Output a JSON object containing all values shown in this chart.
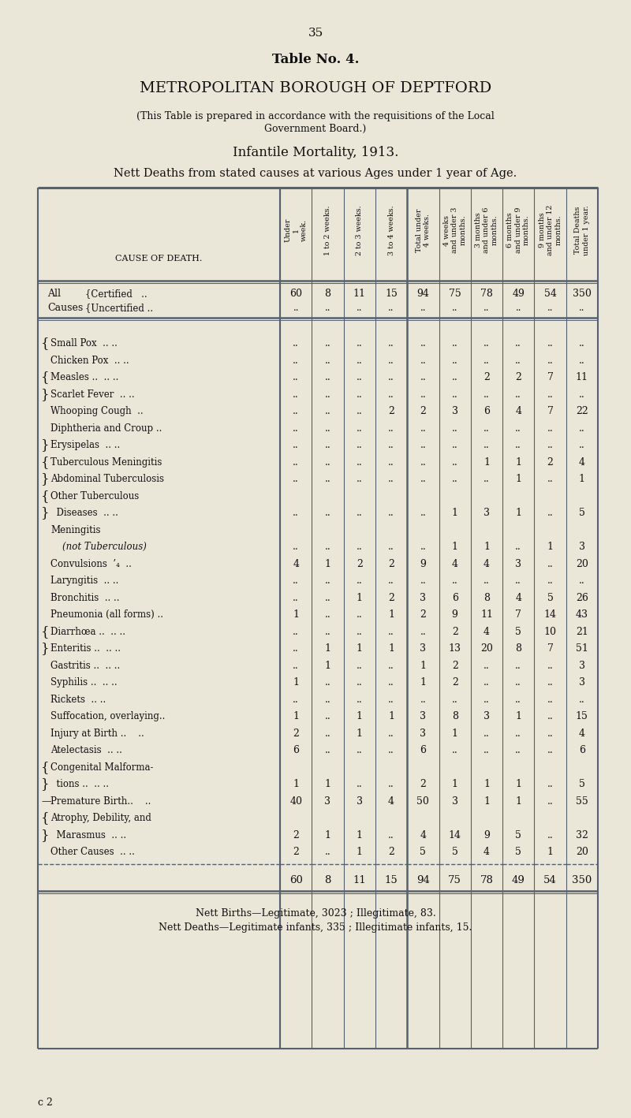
{
  "page_number": "35",
  "table_title": "Table No. 4.",
  "borough_title": "METROPOLITAN BOROUGH OF DEPTFORD",
  "subtitle1": "(This Table is prepared in accordance with the requisitions of the Local",
  "subtitle2": "Government Board.)",
  "mortality_title": "Infantile Mortality, 1913.",
  "nett_deaths_title": "Nett Deaths from stated causes at various Ages under 1 year of Age.",
  "col_headers": [
    "Under\n1\nweek.",
    "1 to 2 weeks.",
    "2 to 3 weeks.",
    "3 to 4 weeks.",
    "Total under\n4 weeks.",
    "4 weeks\nand under 3\nmonths.",
    "3 months\nand under 6\nmonths.",
    "6 months\nand under 9\nmonths.",
    "9 months\nand under 12\nmonths.",
    "Total Deaths\nunder 1 year."
  ],
  "footer1": "Nett Births—Legitimate, 3023 ; Illegitimate, 83.",
  "footer2": "Nett Deaths—Legitimate infants, 335 ; Illegitimate infants, 15.",
  "page_ref": "c 2",
  "bg_color": "#eae6d8",
  "line_color": "#556070",
  "text_color": "#111111",
  "table_rows": [
    {
      "label1": "All",
      "label2": "Certified   ..",
      "bracket": "brace_open",
      "vals": [
        "60",
        "8",
        "11",
        "15",
        "94",
        "75",
        "78",
        "49",
        "54",
        "350"
      ]
    },
    {
      "label1": "Causes",
      "label2": "Uncertified ..",
      "bracket": "brace_close",
      "vals": [
        "..",
        "..",
        "..",
        "..",
        "..",
        "..",
        "..",
        "..",
        "..",
        ".."
      ]
    },
    {
      "label1": "",
      "label2": "",
      "bracket": "none",
      "vals": [
        "",
        "",
        "",
        "",
        "",
        "",
        "",
        "",
        "",
        ""
      ],
      "spacer": true
    },
    {
      "label1": "Small Pox",
      "label2": ".. ..",
      "bracket": "large_open",
      "vals": [
        "..",
        "..",
        "..",
        "..",
        "..",
        "..",
        "..",
        "..",
        "..",
        ".."
      ]
    },
    {
      "label1": "Chicken Pox",
      "label2": ".. ..",
      "bracket": "large_mid",
      "vals": [
        "..",
        "..",
        "..",
        "..",
        "..",
        "..",
        "..",
        "..",
        "..",
        ".."
      ]
    },
    {
      "label1": "Measles ..",
      "label2": ".. ..",
      "bracket": "large_mid",
      "vals": [
        "..",
        "..",
        "..",
        "..",
        "..",
        "..",
        "2",
        "2",
        "7",
        "11"
      ]
    },
    {
      "label1": "Scarlet Fever",
      "label2": ".. ..",
      "bracket": "large_mid",
      "vals": [
        "..",
        "..",
        "..",
        "..",
        "..",
        "..",
        "..",
        "..",
        "..",
        ".."
      ]
    },
    {
      "label1": "Whooping Cough",
      "label2": "..",
      "bracket": "large_mid",
      "vals": [
        "..",
        "..",
        "..",
        "2",
        "2",
        "3",
        "6",
        "4",
        "7",
        "22"
      ]
    },
    {
      "label1": "Diphtheria and Croup ..",
      "label2": "",
      "bracket": "large_mid",
      "vals": [
        "..",
        "..",
        "..",
        "..",
        "..",
        "..",
        "..",
        "..",
        "..",
        ".."
      ]
    },
    {
      "label1": "Erysipelas",
      "label2": ".. ..",
      "bracket": "large_close",
      "vals": [
        "..",
        "..",
        "..",
        "..",
        "..",
        "..",
        "..",
        "..",
        "..",
        ".."
      ]
    },
    {
      "label1": "Tuberculous Meningitis",
      "label2": "",
      "bracket": "small_open",
      "vals": [
        "..",
        "..",
        "..",
        "..",
        "..",
        "..",
        "1",
        "1",
        "2",
        "4"
      ]
    },
    {
      "label1": "Abdominal Tuberculosis",
      "label2": "",
      "bracket": "small_close",
      "vals": [
        "..",
        "..",
        "..",
        "..",
        "..",
        "..",
        "..",
        "1",
        "..",
        "1"
      ]
    },
    {
      "label1": "Other Tuberculous",
      "label2": "",
      "bracket": "small_open2",
      "vals": [
        "",
        "",
        "",
        "",
        "",
        "",
        "",
        "",
        "",
        ""
      ]
    },
    {
      "label1": "  Diseases",
      "label2": ".. ..",
      "bracket": "small_close2",
      "vals": [
        "..",
        "..",
        "..",
        "..",
        "..",
        "1",
        "3",
        "1",
        "..",
        "5"
      ]
    },
    {
      "label1": "Meningitis",
      "label2": "",
      "bracket": "none",
      "vals": [
        "",
        "",
        "",
        "",
        "",
        "",
        "",
        "",
        "",
        ""
      ]
    },
    {
      "label1": "  (not Tuberculous)",
      "label2": "",
      "bracket": "none",
      "italic_label": true,
      "vals": [
        "..",
        "..",
        "..",
        "..",
        "..",
        "1",
        "1",
        "..",
        "1",
        "3"
      ]
    },
    {
      "label1": "Convulsions",
      "label2": "’₄ ..",
      "bracket": "none",
      "vals": [
        "4",
        "1",
        "2",
        "2",
        "9",
        "4",
        "4",
        "3",
        "..",
        "20"
      ]
    },
    {
      "label1": "Laryngitis",
      "label2": ".. ..",
      "bracket": "none",
      "vals": [
        "..",
        "..",
        "..",
        "..",
        "..",
        "..",
        "..",
        "..",
        "..",
        ".."
      ]
    },
    {
      "label1": "Bronchitis",
      "label2": ".. ..",
      "bracket": "none",
      "vals": [
        "..",
        "..",
        "1",
        "2",
        "3",
        "6",
        "8",
        "4",
        "5",
        "26"
      ]
    },
    {
      "label1": "Pneumonia (all forms) ..",
      "label2": "",
      "bracket": "none",
      "vals": [
        "1",
        "..",
        "..",
        "1",
        "2",
        "9",
        "11",
        "7",
        "14",
        "43"
      ]
    },
    {
      "label1": "Diarrhœa ..",
      "label2": ".. ..",
      "bracket": "paren_open",
      "vals": [
        "..",
        "..",
        "..",
        "..",
        "..",
        "2",
        "4",
        "5",
        "10",
        "21"
      ]
    },
    {
      "label1": "Enteritis ..",
      "label2": ".. ..",
      "bracket": "paren_close",
      "vals": [
        "..",
        "1",
        "1",
        "1",
        "3",
        "13",
        "20",
        "8",
        "7",
        "51"
      ]
    },
    {
      "label1": "Gastritis ..",
      "label2": ".. ..",
      "bracket": "none",
      "vals": [
        "..",
        "1",
        "..",
        "..",
        "1",
        "2",
        "..",
        "..",
        "..",
        "3"
      ]
    },
    {
      "label1": "Syphilis ..",
      "label2": ".. ..",
      "bracket": "none",
      "vals": [
        "1",
        "..",
        "..",
        "..",
        "1",
        "2",
        "..",
        "..",
        "..",
        "3"
      ]
    },
    {
      "label1": "Rickets",
      "label2": ".. ..",
      "bracket": "none",
      "vals": [
        "..",
        "..",
        "..",
        "..",
        "..",
        "..",
        "..",
        "..",
        "..",
        ".."
      ]
    },
    {
      "label1": "Suffocation, overlaying..",
      "label2": "",
      "bracket": "none",
      "vals": [
        "1",
        "..",
        "1",
        "1",
        "3",
        "8",
        "3",
        "1",
        "..",
        "15"
      ]
    },
    {
      "label1": "Injury at Birth ..",
      "label2": "  ..",
      "bracket": "none",
      "vals": [
        "2",
        "..",
        "1",
        "..",
        "3",
        "1",
        "..",
        "..",
        "..",
        "4"
      ]
    },
    {
      "label1": "Atelectasis",
      "label2": ".. ..",
      "bracket": "none",
      "vals": [
        "6",
        "..",
        "..",
        "..",
        "6",
        "..",
        "..",
        "..",
        "..",
        "6"
      ]
    },
    {
      "label1": "Congenital Malforma-",
      "label2": "",
      "bracket": "curly_open",
      "vals": [
        "",
        "",
        "",
        "",
        "",
        "",
        "",
        "",
        "",
        ""
      ]
    },
    {
      "label1": "  tions ..",
      "label2": ".. ..",
      "bracket": "curly_close",
      "vals": [
        "1",
        "1",
        "..",
        "..",
        "2",
        "1",
        "1",
        "1",
        "..",
        "5"
      ]
    },
    {
      "label1": "Premature Birth..",
      "label2": "  ..",
      "bracket": "dash_bracket",
      "vals": [
        "40",
        "3",
        "3",
        "4",
        "50",
        "3",
        "1",
        "1",
        "..",
        "55"
      ]
    },
    {
      "label1": "Atrophy, Debility, and",
      "label2": "",
      "bracket": "curly_open2",
      "vals": [
        "",
        "",
        "",
        "",
        "",
        "",
        "",
        "",
        "",
        ""
      ]
    },
    {
      "label1": "  Marasmus",
      "label2": ".. ..",
      "bracket": "curly_close2",
      "vals": [
        "2",
        "1",
        "1",
        "..",
        "4",
        "14",
        "9",
        "5",
        "..",
        "32"
      ]
    },
    {
      "label1": "Other Causes",
      "label2": ".. ..",
      "bracket": "none",
      "vals": [
        "2",
        "..",
        "1",
        "2",
        "5",
        "5",
        "4",
        "5",
        "1",
        "20"
      ]
    }
  ],
  "total_row": [
    "60",
    "8",
    "11",
    "15",
    "94",
    "75",
    "78",
    "49",
    "54",
    "350"
  ]
}
